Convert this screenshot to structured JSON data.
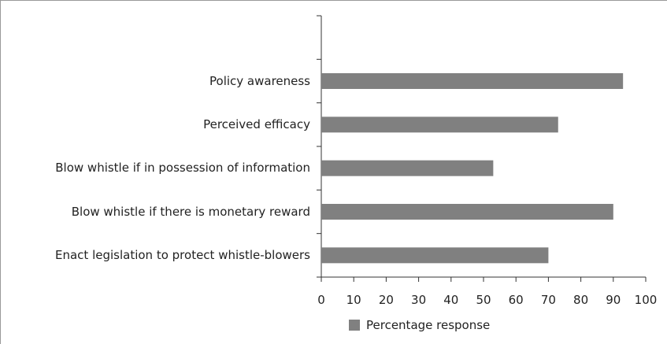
{
  "chart_data": {
    "type": "bar",
    "orientation": "horizontal",
    "categories": [
      null,
      "Policy awareness",
      "Perceived efficacy",
      "Blow whistle if in possession of information",
      "Blow whistle if there is monetary reward",
      "Enact legislation to protect whistle-blowers"
    ],
    "series": [
      {
        "name": "Percentage response",
        "color": "#808080",
        "values": [
          null,
          93,
          73,
          53,
          90,
          70
        ]
      }
    ],
    "xlim": [
      0,
      100
    ],
    "xticks": [
      0,
      10,
      20,
      30,
      40,
      50,
      60,
      70,
      80,
      90,
      100
    ],
    "legend": "bottom",
    "grid": false
  }
}
